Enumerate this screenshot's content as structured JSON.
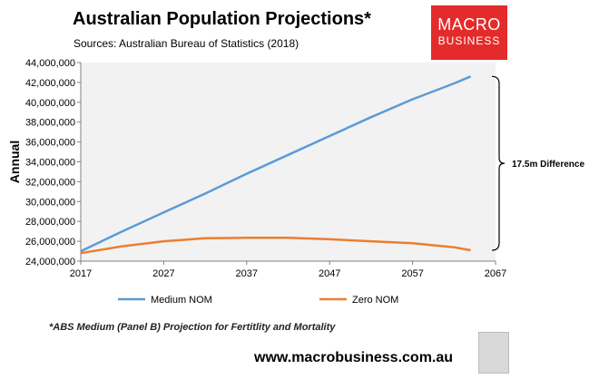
{
  "title": "Australian Population Projections*",
  "subtitle": "Sources: Australian Bureau of Statistics (2018)",
  "logo": {
    "line1": "MACRO",
    "line2": "BUSINESS"
  },
  "footnote": "*ABS Medium (Panel B) Projection for Fertitlity and Mortality",
  "website": "www.macrobusiness.com.au",
  "annotation": "17.5m Difference",
  "colors": {
    "medium": "#5b9bd5",
    "zero": "#ed7d31",
    "plot_bg": "#f2f2f2",
    "logo": "#e42b2b"
  },
  "chart_data": {
    "type": "line",
    "title": "Australian Population Projections*",
    "xlabel": "",
    "ylabel": "Annual",
    "xlim": [
      2017,
      2067
    ],
    "ylim": [
      24000000,
      44000000
    ],
    "x_ticks": [
      2017,
      2027,
      2037,
      2047,
      2057,
      2067
    ],
    "x_tick_labels": [
      "2017",
      "2027",
      "2037",
      "2047",
      "2057",
      "2067"
    ],
    "y_ticks": [
      24000000,
      26000000,
      28000000,
      30000000,
      32000000,
      34000000,
      36000000,
      38000000,
      40000000,
      42000000,
      44000000
    ],
    "y_tick_labels": [
      "24,000,000",
      "26,000,000",
      "28,000,000",
      "30,000,000",
      "32,000,000",
      "34,000,000",
      "36,000,000",
      "38,000,000",
      "40,000,000",
      "42,000,000",
      "44,000,000"
    ],
    "grid": false,
    "legend_position": "bottom",
    "series": [
      {
        "name": "Medium NOM",
        "color": "#5b9bd5",
        "x": [
          2017,
          2022,
          2027,
          2032,
          2037,
          2042,
          2047,
          2052,
          2057,
          2062,
          2064
        ],
        "values": [
          25000000,
          27000000,
          28900000,
          30800000,
          32800000,
          34700000,
          36600000,
          38500000,
          40300000,
          41900000,
          42600000
        ]
      },
      {
        "name": "Zero NOM",
        "color": "#ed7d31",
        "x": [
          2017,
          2022,
          2027,
          2032,
          2037,
          2042,
          2047,
          2052,
          2057,
          2062,
          2064
        ],
        "values": [
          24800000,
          25500000,
          26000000,
          26300000,
          26350000,
          26350000,
          26200000,
          26000000,
          25800000,
          25400000,
          25100000
        ]
      }
    ],
    "annotation": "17.5m Difference"
  }
}
